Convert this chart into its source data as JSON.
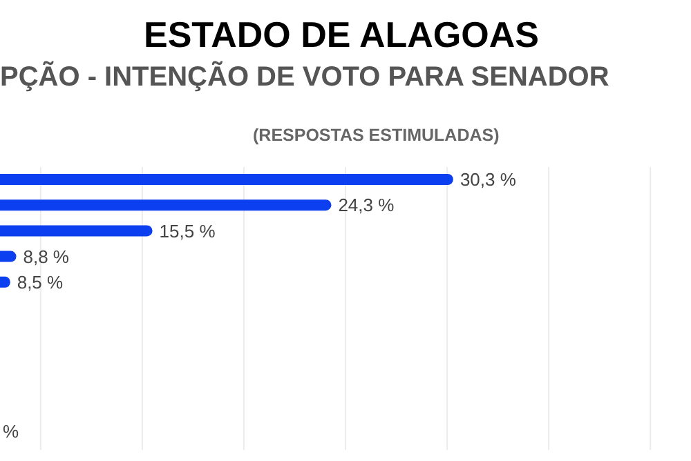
{
  "chart_data": {
    "type": "bar",
    "orientation": "horizontal",
    "title": "ESTADO DE ALAGOAS",
    "subtitle": "PÇÃO - INTENÇÃO DE VOTO PARA SENADOR",
    "annotations": [
      "(RESPOSTAS ESTIMULADAS)",
      "%"
    ],
    "categories": [
      null,
      null,
      null,
      null,
      null
    ],
    "values": [
      30.3,
      24.3,
      15.5,
      8.8,
      8.5
    ],
    "value_labels": [
      "30,3 %",
      "24,3 %",
      "15,5 %",
      "8,8 %",
      "8,5 %"
    ],
    "color": "#0b3ff0",
    "xlim": [
      8,
      42
    ],
    "xticks": [
      {
        "value": 10,
        "label": null
      },
      {
        "value": 15,
        "label": null
      },
      {
        "value": 20,
        "label": null
      },
      {
        "value": 25,
        "label": null
      },
      {
        "value": 30,
        "label": null
      },
      {
        "value": 35,
        "label": null
      },
      {
        "value": 40,
        "label": null
      }
    ],
    "grid": "x",
    "tick_labels": false
  }
}
